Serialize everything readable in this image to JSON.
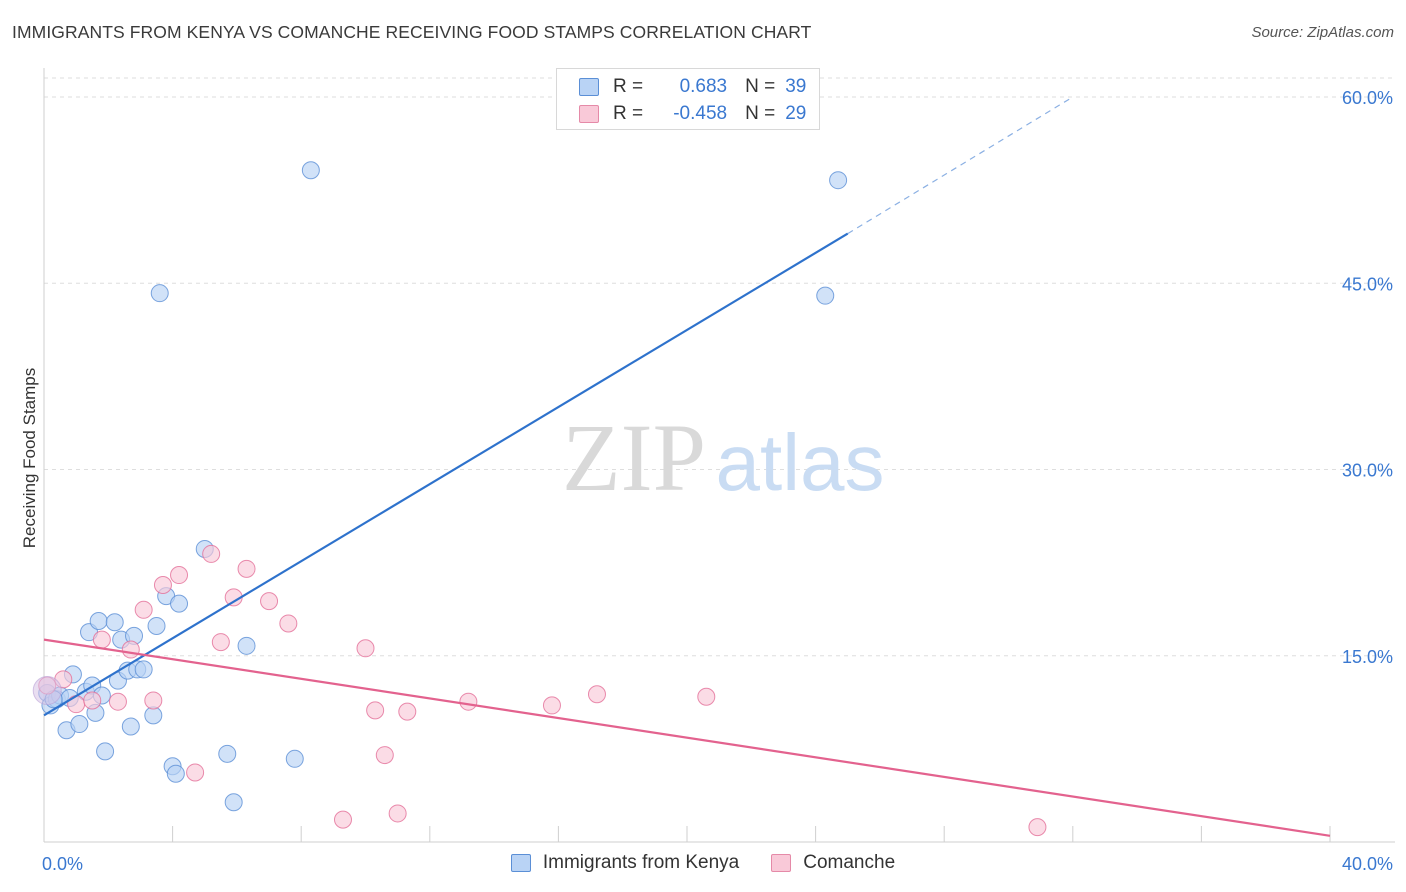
{
  "title": "IMMIGRANTS FROM KENYA VS COMANCHE RECEIVING FOOD STAMPS CORRELATION CHART",
  "source": "Source: ZipAtlas.com",
  "watermark": {
    "zip": "ZIP",
    "atlas": "atlas"
  },
  "legend": {
    "r_label": "R =",
    "n_label": "N =",
    "rows": [
      {
        "name": "Immigrants from Kenya",
        "r": "0.683",
        "n": "39",
        "fill": "#b9d3f5",
        "stroke": "#5b8fd6"
      },
      {
        "name": "Comanche",
        "r": "-0.458",
        "n": "29",
        "fill": "#f9c9d8",
        "stroke": "#e58aa8"
      }
    ]
  },
  "chart_data": {
    "type": "scatter",
    "title": "IMMIGRANTS FROM KENYA VS COMANCHE RECEIVING FOOD STAMPS CORRELATION CHART",
    "xlabel": "",
    "ylabel": "Receiving Food Stamps",
    "xlim": [
      0,
      40
    ],
    "ylim": [
      0,
      60
    ],
    "x_tick_labels": [
      {
        "value": 0,
        "label": "0.0%"
      },
      {
        "value": 40,
        "label": "40.0%"
      }
    ],
    "y_tick_labels": [
      {
        "value": 15,
        "label": "15.0%"
      },
      {
        "value": 30,
        "label": "30.0%"
      },
      {
        "value": 45,
        "label": "45.0%"
      },
      {
        "value": 60,
        "label": "60.0%"
      }
    ],
    "grid": true,
    "legend_position": "top-center",
    "series": [
      {
        "name": "Immigrants from Kenya",
        "color": "#5b8fd6",
        "fill": "#b9d3f5",
        "trend": {
          "x1": 0,
          "y1": 10.2,
          "x2": 25,
          "y2": 49.0,
          "dash_to_x": 32,
          "dash_to_y": 60
        },
        "points": [
          [
            0.1,
            12.0
          ],
          [
            0.2,
            11.0
          ],
          [
            0.4,
            11.5
          ],
          [
            0.5,
            11.8
          ],
          [
            0.7,
            9.0
          ],
          [
            0.8,
            11.6
          ],
          [
            0.9,
            13.5
          ],
          [
            1.1,
            9.5
          ],
          [
            1.3,
            12.1
          ],
          [
            1.4,
            16.9
          ],
          [
            1.5,
            12.6
          ],
          [
            1.6,
            10.4
          ],
          [
            1.7,
            17.8
          ],
          [
            1.8,
            11.8
          ],
          [
            1.9,
            7.3
          ],
          [
            2.2,
            17.7
          ],
          [
            2.3,
            13.0
          ],
          [
            2.4,
            16.3
          ],
          [
            2.6,
            13.8
          ],
          [
            2.7,
            9.3
          ],
          [
            2.8,
            16.6
          ],
          [
            2.9,
            13.9
          ],
          [
            3.1,
            13.9
          ],
          [
            3.4,
            10.2
          ],
          [
            3.5,
            17.4
          ],
          [
            3.6,
            44.2
          ],
          [
            3.8,
            19.8
          ],
          [
            4.0,
            6.1
          ],
          [
            4.1,
            5.5
          ],
          [
            4.2,
            19.2
          ],
          [
            5.0,
            23.6
          ],
          [
            5.7,
            7.1
          ],
          [
            5.9,
            3.2
          ],
          [
            6.3,
            15.8
          ],
          [
            7.8,
            6.7
          ],
          [
            8.3,
            54.1
          ],
          [
            24.3,
            44.0
          ],
          [
            24.7,
            53.3
          ],
          [
            0.3,
            11.5
          ]
        ]
      },
      {
        "name": "Comanche",
        "color": "#e36f98",
        "fill": "#f9c9d8",
        "trend": {
          "x1": 0,
          "y1": 16.3,
          "x2": 40,
          "y2": 0.5
        },
        "points": [
          [
            0.1,
            12.6
          ],
          [
            0.6,
            13.1
          ],
          [
            1.0,
            11.1
          ],
          [
            1.5,
            11.4
          ],
          [
            1.8,
            16.3
          ],
          [
            2.3,
            11.3
          ],
          [
            2.7,
            15.5
          ],
          [
            3.1,
            18.7
          ],
          [
            3.4,
            11.4
          ],
          [
            3.7,
            20.7
          ],
          [
            4.2,
            21.5
          ],
          [
            4.7,
            5.6
          ],
          [
            5.2,
            23.2
          ],
          [
            5.5,
            16.1
          ],
          [
            5.9,
            19.7
          ],
          [
            6.3,
            22.0
          ],
          [
            7.0,
            19.4
          ],
          [
            7.6,
            17.6
          ],
          [
            9.3,
            1.8
          ],
          [
            10.0,
            15.6
          ],
          [
            10.3,
            10.6
          ],
          [
            10.6,
            7.0
          ],
          [
            11.0,
            2.3
          ],
          [
            11.3,
            10.5
          ],
          [
            13.2,
            11.3
          ],
          [
            15.8,
            11.0
          ],
          [
            17.2,
            11.9
          ],
          [
            20.6,
            11.7
          ],
          [
            30.9,
            1.2
          ]
        ]
      }
    ]
  }
}
